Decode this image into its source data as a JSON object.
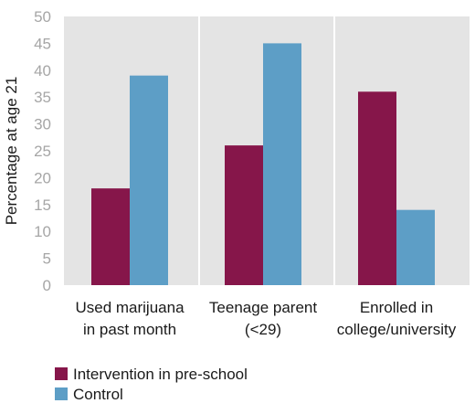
{
  "chart_data": {
    "type": "bar",
    "title": "",
    "xlabel": "",
    "ylabel": "Percentage at age 21",
    "ylim": [
      0,
      50
    ],
    "yticks": [
      0,
      5,
      10,
      15,
      20,
      25,
      30,
      35,
      40,
      45,
      50
    ],
    "grid": false,
    "legend_position": "bottom-left",
    "categories": [
      [
        "Used marijuana",
        "in past month"
      ],
      [
        "Teenage parent",
        "(<29)"
      ],
      [
        "Enrolled in",
        "college/university"
      ]
    ],
    "series": [
      {
        "name": "Intervention in pre-school",
        "color": "#86164a",
        "values": [
          18,
          26,
          36
        ]
      },
      {
        "name": "Control",
        "color": "#5d9ec6",
        "values": [
          39,
          45,
          14
        ]
      }
    ],
    "plot_background": "#e4e4e4",
    "separator_color": "#ffffff"
  }
}
